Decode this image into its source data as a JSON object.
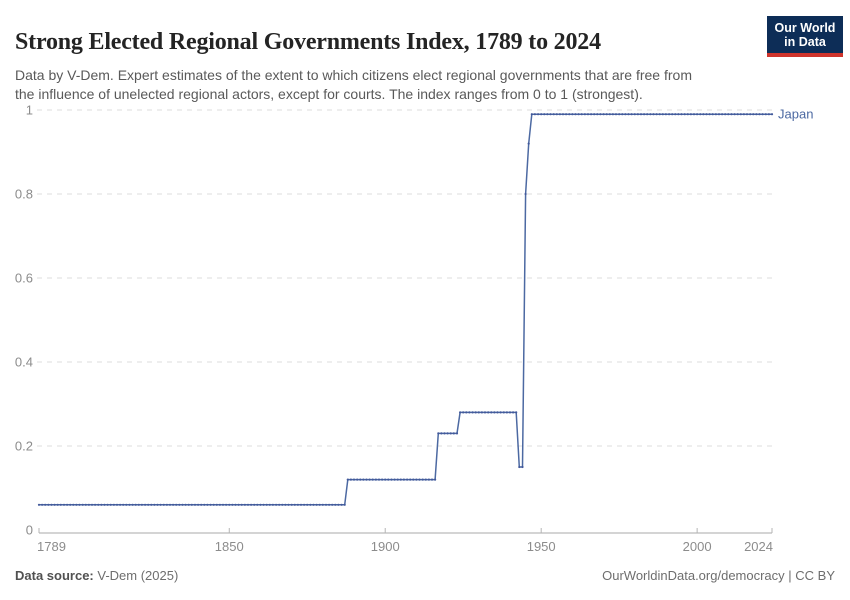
{
  "header": {
    "title": "Strong Elected Regional Governments Index, 1789 to 2024",
    "subtitle_line1": "Data by V-Dem. Expert estimates of the extent to which citizens elect regional governments that are free from",
    "subtitle_line2": "the influence of unelected regional actors, except for courts. The index ranges from 0 to 1 (strongest).",
    "logo": {
      "line1": "Our World",
      "line2": "in Data"
    }
  },
  "footer": {
    "source_label": "Data source:",
    "source_value": " V-Dem (2025)",
    "right_text": "OurWorldinData.org/democracy | CC BY"
  },
  "colors": {
    "series_line": "#4c69a2",
    "series_marker": "#42599b",
    "grid": "#dcdcdc",
    "axis_line": "#a8a8a8",
    "tick": "#b5b5b5",
    "axis_label": "#8c8c8c",
    "logo_bg": "#0d2d57",
    "logo_stripe": "#cf342c"
  },
  "chart_data": {
    "type": "line",
    "title": "Strong Elected Regional Governments Index, 1789 to 2024",
    "xlabel": "",
    "ylabel": "",
    "xlim": [
      1789,
      2024
    ],
    "ylim": [
      0,
      1
    ],
    "x_ticks": [
      1789,
      1850,
      1900,
      1950,
      2000,
      2024
    ],
    "y_ticks": [
      0,
      0.2,
      0.4,
      0.6,
      0.8,
      1
    ],
    "grid": "horizontal-dashed",
    "legend_position": "end-of-line-label",
    "series": [
      {
        "name": "Japan",
        "points": [
          [
            1789,
            0.06
          ],
          [
            1887,
            0.06
          ],
          [
            1888,
            0.12
          ],
          [
            1916,
            0.12
          ],
          [
            1917,
            0.23
          ],
          [
            1923,
            0.23
          ],
          [
            1924,
            0.28
          ],
          [
            1942,
            0.28
          ],
          [
            1943,
            0.15
          ],
          [
            1944,
            0.15
          ],
          [
            1945,
            0.8
          ],
          [
            1946,
            0.92
          ],
          [
            1947,
            0.99
          ],
          [
            2024,
            0.99
          ]
        ]
      }
    ]
  }
}
